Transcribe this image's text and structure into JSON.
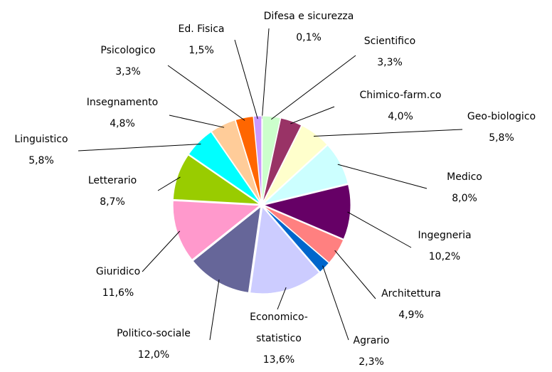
{
  "chart_data": {
    "type": "pie",
    "categories": [
      "Difesa e sicurezza",
      "Scientifico",
      "Chimico-farm.co",
      "Geo-biologico",
      "Medico",
      "Ingegneria",
      "Architettura",
      "Agrario",
      "Economico-statistico",
      "Politico-sociale",
      "Giuridico",
      "Letterario",
      "Linguistico",
      "Insegnamento",
      "Psicologico",
      "Ed. Fisica"
    ],
    "values": [
      0.1,
      3.3,
      4.0,
      5.8,
      8.0,
      10.2,
      4.9,
      2.3,
      13.6,
      12.0,
      11.6,
      8.7,
      5.8,
      4.8,
      3.3,
      1.5
    ],
    "value_labels": [
      "0,1%",
      "3,3%",
      "4,0%",
      "5,8%",
      "8,0%",
      "10,2%",
      "4,9%",
      "2,3%",
      "13,6%",
      "12,0%",
      "11,6%",
      "8,7%",
      "5,8%",
      "4,8%",
      "3,3%",
      "1,5%"
    ],
    "colors": [
      "#9999ff",
      "#ccffcc",
      "#993366",
      "#ffffcc",
      "#ccffff",
      "#660066",
      "#ff8080",
      "#0066cc",
      "#ccccff",
      "#666699",
      "#ff99cc",
      "#99cc00",
      "#00ffff",
      "#ffcc99",
      "#ff6600",
      "#cc99ff"
    ]
  }
}
